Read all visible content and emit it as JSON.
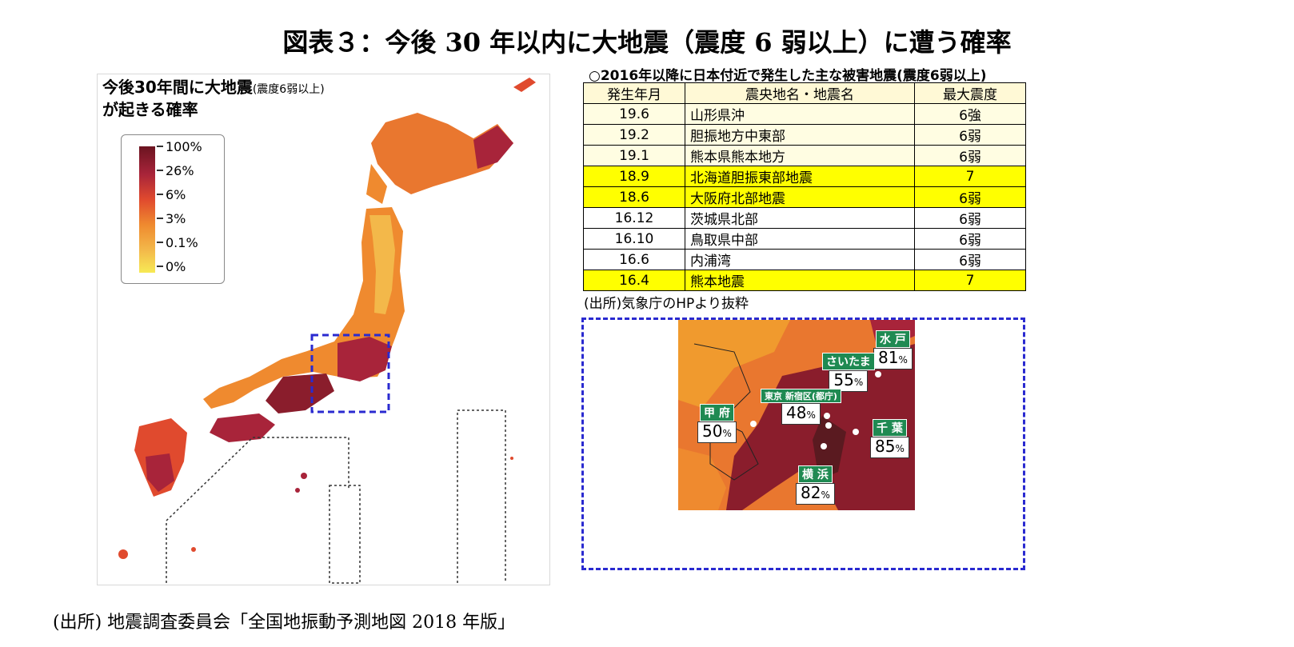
{
  "title": "図表３：今後 30 年以内に大地震（震度 6 弱以上）に遭う確率",
  "map": {
    "heading_line1": "今後30年間に大地震",
    "heading_sub": "(震度6弱以上)",
    "heading_line2": "が起きる確率",
    "legend": [
      "100%",
      "26%",
      "6%",
      "3%",
      "0.1%",
      "0%"
    ],
    "legend_colors": [
      "#6b1420",
      "#a8243a",
      "#e04a2e",
      "#ef8a2f",
      "#f3b84a",
      "#f7ea55"
    ]
  },
  "table": {
    "caption": "○2016年以降に日本付近で発生した主な被害地震(震度6弱以上)",
    "headers": [
      "発生年月",
      "震央地名・地震名",
      "最大震度"
    ],
    "rows": [
      {
        "date": "19.6",
        "name": "山形県沖",
        "intensity": "6強"
      },
      {
        "date": "19.2",
        "name": "胆振地方中東部",
        "intensity": "6弱"
      },
      {
        "date": "19.1",
        "name": "熊本県熊本地方",
        "intensity": "6弱"
      },
      {
        "date": "18.9",
        "name": "北海道胆振東部地震",
        "intensity": "7"
      },
      {
        "date": "18.6",
        "name": "大阪府北部地震",
        "intensity": "6弱"
      },
      {
        "date": "16.12",
        "name": "茨城県北部",
        "intensity": "6弱"
      },
      {
        "date": "16.10",
        "name": "鳥取県中部",
        "intensity": "6弱"
      },
      {
        "date": "16.6",
        "name": "内浦湾",
        "intensity": "6弱"
      },
      {
        "date": "16.4",
        "name": "熊本地震",
        "intensity": "7"
      }
    ],
    "source": "(出所)気象庁のHPより抜粋"
  },
  "inset": {
    "cities": [
      {
        "name": "水 戸",
        "value": "81",
        "unit": "%"
      },
      {
        "name": "さいたま",
        "value": "55",
        "unit": "%"
      },
      {
        "name": "東京 新宿区(都庁)",
        "value": "48",
        "unit": "%"
      },
      {
        "name": "甲 府",
        "value": "50",
        "unit": "%"
      },
      {
        "name": "千 葉",
        "value": "85",
        "unit": "%"
      },
      {
        "name": "横 浜",
        "value": "82",
        "unit": "%"
      }
    ]
  },
  "footer": "(出所) 地震調査委員会「全国地振動予測地図 2018 年版」"
}
